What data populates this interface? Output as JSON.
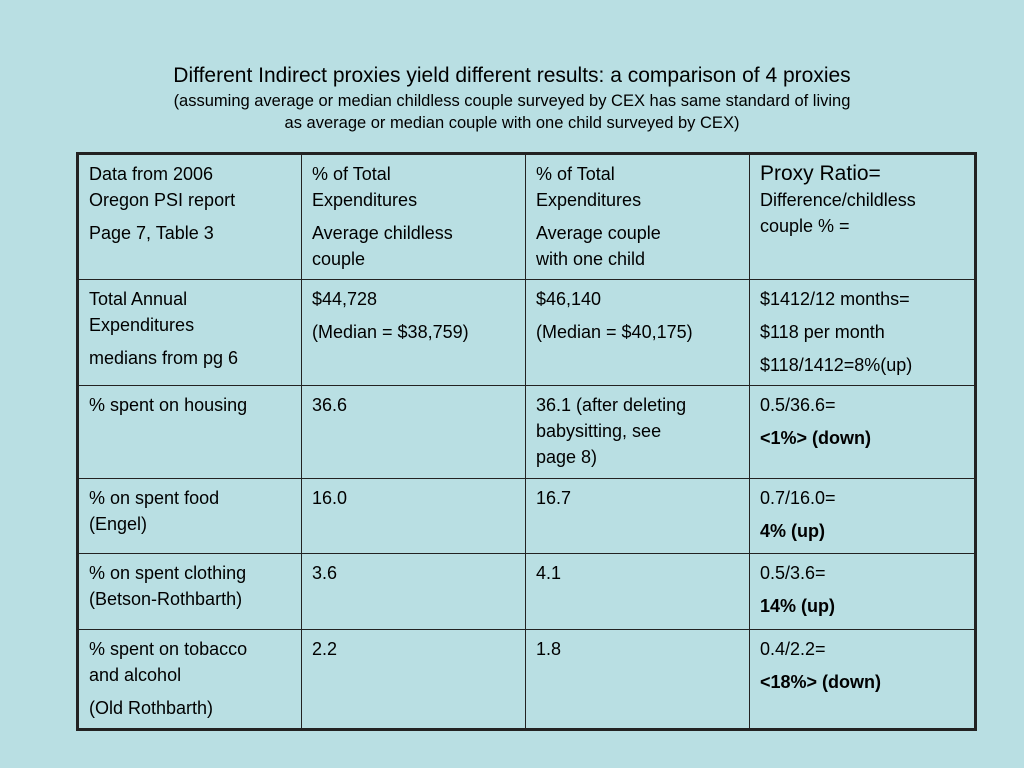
{
  "title": "Different Indirect proxies yield different results: a comparison of 4 proxies",
  "subtitle_line1": "(assuming average or median childless couple surveyed by CEX has same standard of living",
  "subtitle_line2": "as average or median couple with one child surveyed by CEX)",
  "table": {
    "header": {
      "c1_l1": "Data from 2006",
      "c1_l2": "Oregon PSI report",
      "c1_l3": "Page 7, Table 3",
      "c2_l1": "% of Total",
      "c2_l2": "Expenditures",
      "c2_l3": "Average childless",
      "c2_l4": "couple",
      "c3_l1": "% of Total",
      "c3_l2": "Expenditures",
      "c3_l3": "Average couple",
      "c3_l4": "with one child",
      "c4_l1": "Proxy Ratio=",
      "c4_l2": "Difference/childless",
      "c4_l3": "couple % ="
    },
    "rows": [
      {
        "c1": [
          "Total Annual",
          "Expenditures",
          "medians from pg 6"
        ],
        "c2": [
          "$44,728",
          "(Median = $38,759)"
        ],
        "c3": [
          "$46,140",
          "(Median = $40,175)"
        ],
        "c4": [
          "$1412/12 months=",
          "$118 per month",
          "$118/1412=8%(up)"
        ]
      },
      {
        "c1": [
          "% spent on housing"
        ],
        "c2": [
          "36.6"
        ],
        "c3": [
          "36.1 (after deleting",
          "babysitting, see",
          "page 8)"
        ],
        "c4": [
          "0.5/36.6=",
          "<1%> (down)"
        ]
      },
      {
        "c1": [
          "% on spent food",
          "(Engel)"
        ],
        "c2": [
          "16.0"
        ],
        "c3": [
          "16.7"
        ],
        "c4": [
          "0.7/16.0=",
          "4% (up)"
        ]
      },
      {
        "c1": [
          "% on spent clothing",
          "(Betson-Rothbarth)"
        ],
        "c2": [
          "3.6"
        ],
        "c3": [
          "4.1"
        ],
        "c4": [
          "0.5/3.6=",
          "14% (up)"
        ]
      },
      {
        "c1": [
          "% spent on tobacco",
          "and alcohol",
          "(Old Rothbarth)"
        ],
        "c2": [
          "2.2"
        ],
        "c3": [
          "1.8"
        ],
        "c4": [
          "0.4/2.2=",
          "<18%> (down)"
        ]
      }
    ]
  }
}
